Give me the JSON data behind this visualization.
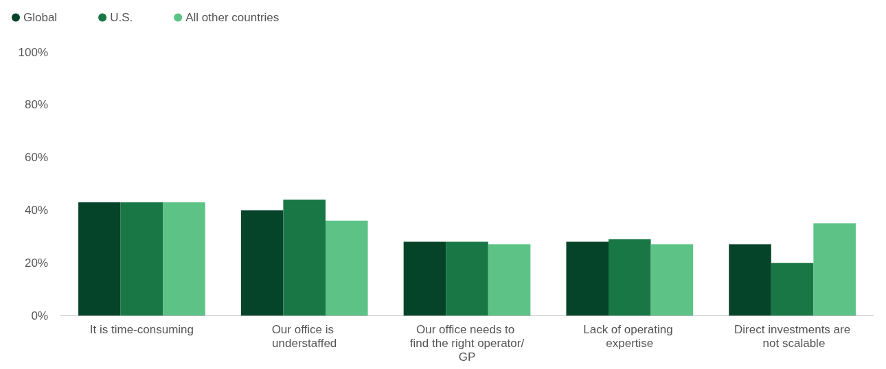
{
  "chart_data": {
    "type": "bar",
    "categories": [
      "It is time-consuming",
      "Our office is understaffed",
      "Our office needs to find the right operator/GP",
      "Lack of operating expertise",
      "Direct investments are not scalable"
    ],
    "series": [
      {
        "name": "Global",
        "color": "#054429",
        "values": [
          43,
          40,
          28,
          28,
          27
        ]
      },
      {
        "name": "U.S.",
        "color": "#187745",
        "values": [
          43,
          44,
          28,
          29,
          20
        ]
      },
      {
        "name": "All other countries",
        "color": "#5cc285",
        "values": [
          43,
          36,
          27,
          27,
          35
        ]
      }
    ],
    "ylim": [
      0,
      100
    ],
    "yticks": [
      {
        "value": 0,
        "label": "0%"
      },
      {
        "value": 20,
        "label": "20%"
      },
      {
        "value": 40,
        "label": "40%"
      },
      {
        "value": 60,
        "label": "60%"
      },
      {
        "value": 80,
        "label": "80%"
      },
      {
        "value": 100,
        "label": "100%"
      }
    ],
    "grid": false,
    "legend": "top left"
  }
}
